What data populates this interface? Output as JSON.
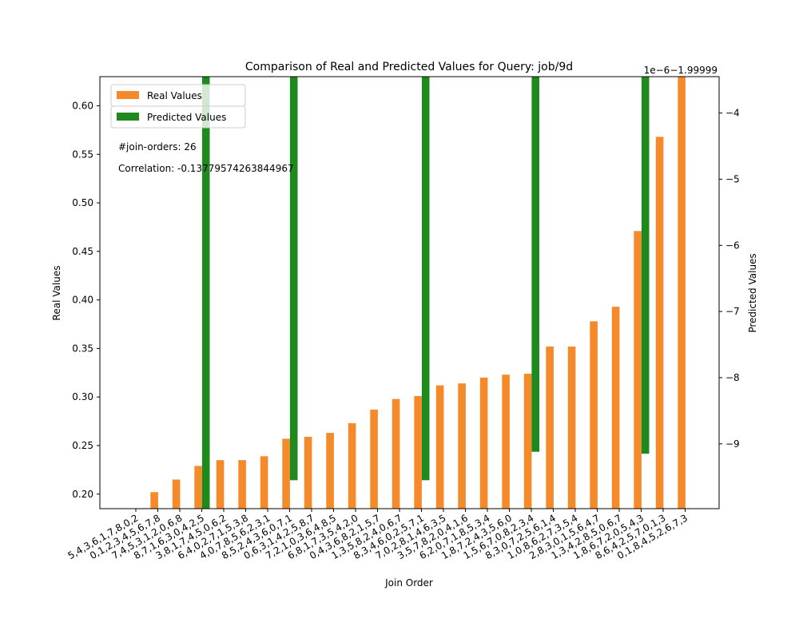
{
  "colors": {
    "real": "#f58a2b",
    "predicted": "#1e8a1e"
  },
  "chart_data": {
    "type": "bar",
    "title": "Comparison of Real and Predicted Values for Query: job/9d",
    "xlabel": "Join Order",
    "ylabel_left": "Real Values",
    "ylabel_right": "Predicted Values",
    "right_axis_offset_text": "1e−6−1.99999",
    "legend_position": "upper-left",
    "annotations": [
      "#join-orders: 26",
      "Correlation: -0.13779574263844967"
    ],
    "categories": [
      "5,4,3,6,1,7,8,0,2",
      "0,1,2,3,4,5,6,7,8",
      "7,4,5,3,1,2,0,6,8",
      "8,7,1,6,3,0,4,2,5",
      "3,8,1,7,4,5,0,6,2",
      "6,4,0,2,7,1,5,3,8",
      "4,0,7,8,5,6,2,3,1",
      "8,5,2,4,3,6,0,7,1",
      "0,6,3,1,4,2,5,8,7",
      "7,2,1,0,3,6,4,8,5",
      "6,8,1,7,3,5,4,2,0",
      "0,4,3,6,8,2,1,5,7",
      "1,3,5,8,2,4,0,6,7",
      "8,3,4,6,0,2,5,7,1",
      "7,0,2,8,1,4,6,3,5",
      "3,5,7,8,2,0,4,1,6",
      "6,2,0,7,1,8,5,3,4",
      "1,8,7,2,4,3,5,6,0",
      "1,5,6,7,0,8,2,3,4",
      "8,3,0,7,2,5,6,1,4",
      "1,0,8,6,2,7,3,5,4",
      "2,8,3,0,1,5,6,4,7",
      "1,3,4,2,8,5,0,6,7",
      "1,8,6,7,2,0,5,4,3",
      "8,6,4,2,5,7,0,1,3",
      "0,1,8,4,5,2,6,7,3"
    ],
    "series": [
      {
        "name": "Real Values",
        "axis": "left",
        "values": [
          0.185,
          0.202,
          0.215,
          0.229,
          0.235,
          0.235,
          0.239,
          0.257,
          0.259,
          0.263,
          0.273,
          0.287,
          0.298,
          0.301,
          0.312,
          0.314,
          0.32,
          0.323,
          0.324,
          0.352,
          0.352,
          0.378,
          0.393,
          0.471,
          0.568,
          0.63
        ]
      },
      {
        "name": "Predicted Values",
        "axis": "right",
        "values": [
          -3.3,
          -3.3,
          -3.3,
          -10.0,
          -3.3,
          -3.3,
          -3.3,
          -9.55,
          -3.3,
          -3.3,
          -3.3,
          -3.3,
          -3.3,
          -9.55,
          -3.3,
          -3.3,
          -3.3,
          -3.3,
          -9.12,
          -3.3,
          -3.3,
          -3.3,
          -3.3,
          -9.15,
          -3.3,
          -3.3
        ]
      }
    ],
    "ylim_left": [
      0.185,
      0.63
    ],
    "yticks_left": [
      "0.20",
      "0.25",
      "0.30",
      "0.35",
      "0.40",
      "0.45",
      "0.50",
      "0.55",
      "0.60"
    ],
    "ylim_right": [
      -9.98,
      -3.45
    ],
    "yticks_right": [
      "−4",
      "−5",
      "−6",
      "−7",
      "−8",
      "−9"
    ],
    "grid": false
  }
}
